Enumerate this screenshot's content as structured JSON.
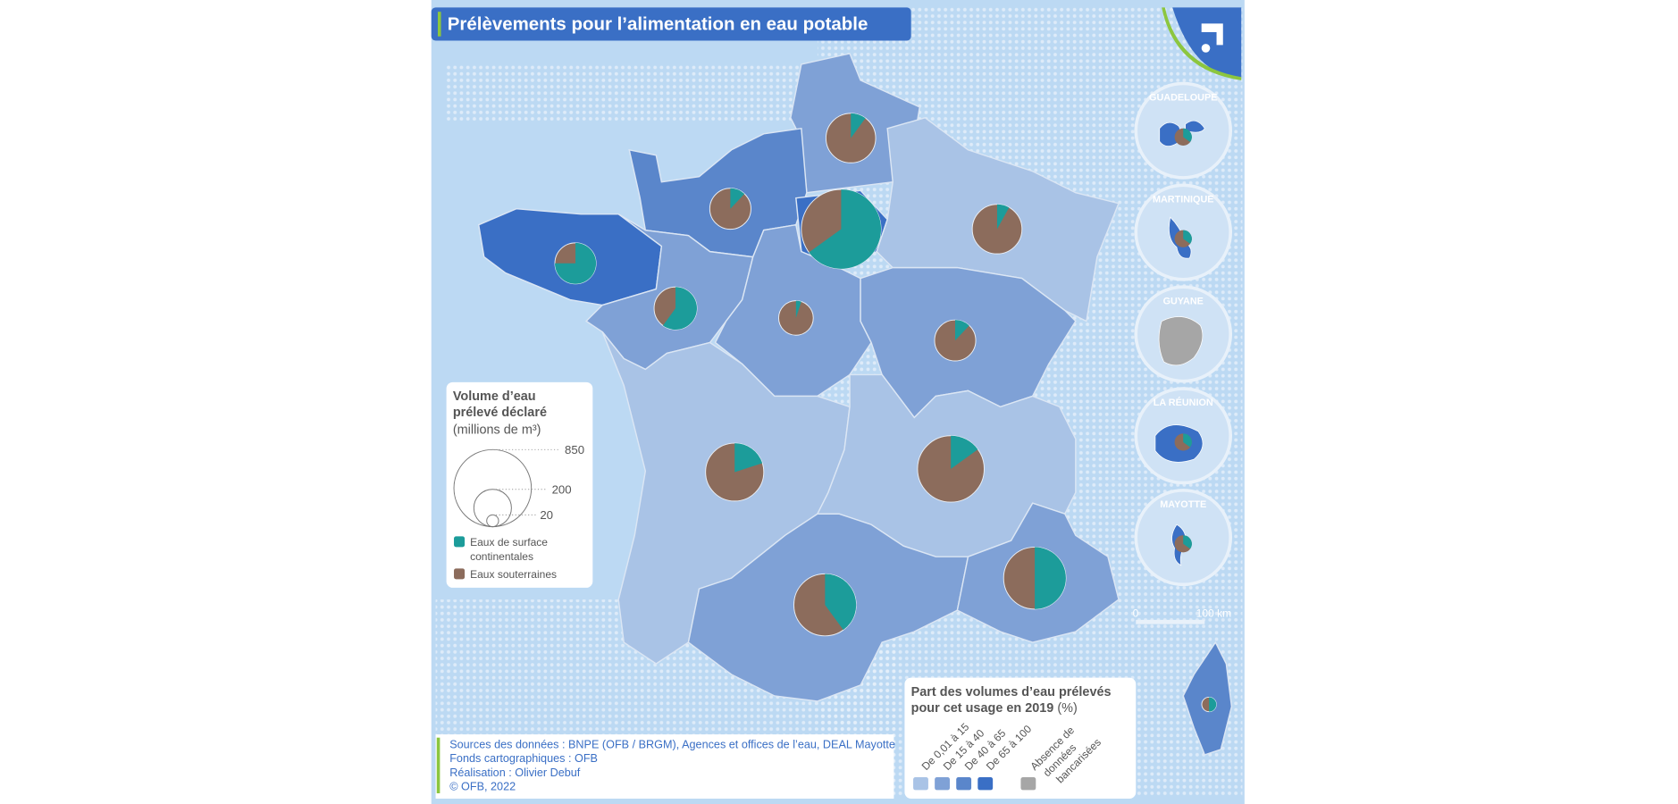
{
  "title": "Prélèvements pour l’alimentation en eau potable",
  "legend_volume": {
    "title": [
      "Volume d’eau",
      "prélevé déclaré"
    ],
    "unit": "(millions de m³)",
    "circles": [
      850,
      200,
      20
    ],
    "items": [
      {
        "label": [
          "Eaux de surface",
          "continentales"
        ],
        "color": "#1c9c9a"
      },
      {
        "label": [
          "Eaux souterraines"
        ],
        "color": "#8c6c5c"
      }
    ]
  },
  "legend_share": {
    "title": [
      "Part des volumes d’eau prélevés",
      "pour cet usage en 2019"
    ],
    "unit": "(%)",
    "classes": [
      {
        "label": "De 0,01 à 15",
        "color": "#a9c3e6"
      },
      {
        "label": "De 15 à 40",
        "color": "#7fa1d6"
      },
      {
        "label": "De 40 à 65",
        "color": "#5a86cb"
      },
      {
        "label": "De 65 à 100",
        "color": "#3a6fc5"
      }
    ],
    "missing": {
      "label": [
        "Absence de",
        "données",
        "bancarisées"
      ],
      "color": "#a6a6a6"
    }
  },
  "sources": [
    "Sources des données : BNPE (OFB / BRGM), Agences et offices de l’eau, DEAL Mayotte",
    "Fonds cartographiques : OFB",
    "Réalisation : Olivier Debuf",
    "© OFB, 2022"
  ],
  "scale": [
    "0",
    "100 km"
  ],
  "dom": [
    "GUADELOUPE",
    "MARTINIQUE",
    "GUYANE",
    "LA RÉUNION",
    "MAYOTTE"
  ],
  "pies": [
    {
      "volume": 350,
      "surface": 10
    },
    {
      "volume": 240,
      "surface": 12
    },
    {
      "volume": 900,
      "surface": 65
    },
    {
      "volume": 350,
      "surface": 8
    },
    {
      "volume": 240,
      "surface": 75
    },
    {
      "volume": 260,
      "surface": 60
    },
    {
      "volume": 170,
      "surface": 5
    },
    {
      "volume": 240,
      "surface": 12
    },
    {
      "volume": 480,
      "surface": 20
    },
    {
      "volume": 630,
      "surface": 15
    },
    {
      "volume": 550,
      "surface": 40
    },
    {
      "volume": 550,
      "surface": 50
    },
    {
      "volume": 30,
      "surface": 50
    }
  ]
}
